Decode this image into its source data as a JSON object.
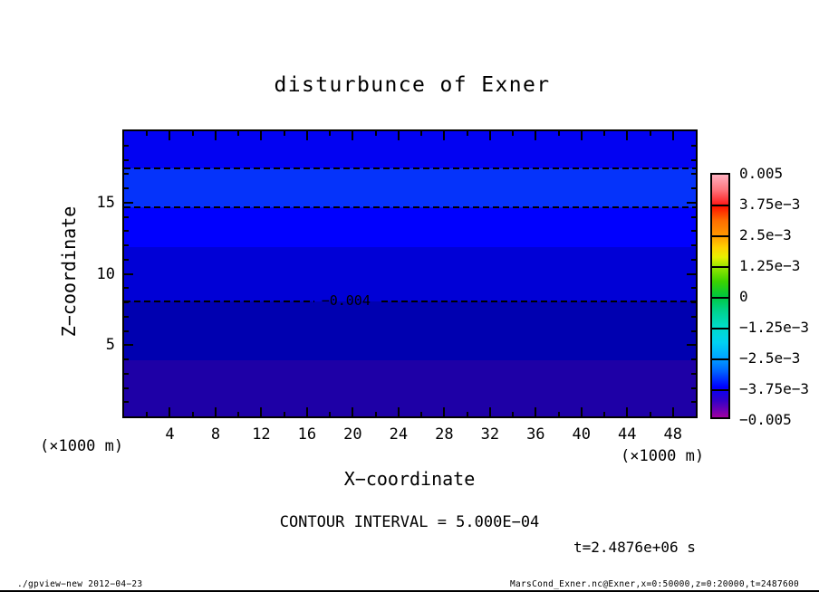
{
  "chart_data": {
    "type": "filled_contour",
    "title": "disturbunce of Exner",
    "xlabel": "X−coordinate",
    "ylabel": "Z−coordinate",
    "x_unit_left": "(×1000 m)",
    "x_unit_right": "(×1000 m)",
    "xlim": [
      0,
      50
    ],
    "ylim": [
      0,
      20
    ],
    "x_major_ticks": [
      4,
      8,
      12,
      16,
      20,
      24,
      28,
      32,
      36,
      40,
      44,
      48
    ],
    "x_minor_step": 2,
    "y_major_ticks": [
      5,
      10,
      15
    ],
    "y_minor_step": 1,
    "grid": false,
    "contour_interval_text": "CONTOUR INTERVAL = 5.000E−04",
    "time_label": "t=2.4876e+06 s",
    "bands": [
      {
        "z_from": 17.4,
        "z_to": 20.0,
        "color": "#0202f2",
        "value_range": "≈0.0030 to −0.0035"
      },
      {
        "z_from": 14.67,
        "z_to": 17.4,
        "color": "#0533fa",
        "value_range": "≈−0.0025 to −0.0030"
      },
      {
        "z_from": 11.87,
        "z_to": 14.67,
        "color": "#0000fe",
        "value_range": "≈−0.0030 to −0.0035"
      },
      {
        "z_from": 8.06,
        "z_to": 11.87,
        "color": "#0000d6",
        "value_range": "≈−0.0035 to −0.0040"
      },
      {
        "z_from": 3.94,
        "z_to": 8.06,
        "color": "#0000b0",
        "value_range": "≈−0.0040 to −0.0045"
      },
      {
        "z_from": 0.0,
        "z_to": 3.94,
        "color": "#1e00a6",
        "value_range": "≈−0.0045 to −0.0050"
      }
    ],
    "contour_lines": [
      {
        "z": 17.4,
        "style": "dashed",
        "label": null
      },
      {
        "z": 14.67,
        "style": "dashed",
        "label": null
      },
      {
        "z": 8.06,
        "style": "dashed",
        "label": "−0.004",
        "label_x_frac": 0.345
      }
    ],
    "colorbar": {
      "tick_labels": [
        "0.005",
        "3.75e−3",
        "2.5e−3",
        "1.25e−3",
        "0",
        "−1.25e−3",
        "−2.5e−3",
        "−3.75e−3",
        "−0.005"
      ],
      "gradient_stops": [
        {
          "at": 0.0,
          "color": "#ffb0c0"
        },
        {
          "at": 0.06,
          "color": "#ff7880"
        },
        {
          "at": 0.12,
          "color": "#ff2020"
        },
        {
          "at": 0.125,
          "color": "#ff0a00"
        },
        {
          "at": 0.19,
          "color": "#ff6e00"
        },
        {
          "at": 0.25,
          "color": "#ff9800"
        },
        {
          "at": 0.3,
          "color": "#ffd200"
        },
        {
          "at": 0.34,
          "color": "#e8f000"
        },
        {
          "at": 0.375,
          "color": "#a0e800"
        },
        {
          "at": 0.44,
          "color": "#3cd200"
        },
        {
          "at": 0.5,
          "color": "#00c83c"
        },
        {
          "at": 0.56,
          "color": "#00d28c"
        },
        {
          "at": 0.625,
          "color": "#00dcc8"
        },
        {
          "at": 0.69,
          "color": "#00d2f0"
        },
        {
          "at": 0.75,
          "color": "#00a8ff"
        },
        {
          "at": 0.81,
          "color": "#0064ff"
        },
        {
          "at": 0.875,
          "color": "#0000ff"
        },
        {
          "at": 0.93,
          "color": "#3200c8"
        },
        {
          "at": 0.97,
          "color": "#6e00b4"
        },
        {
          "at": 1.0,
          "color": "#a000a0"
        }
      ]
    }
  },
  "footer": {
    "left": "./gpview−new  2012−04−23",
    "right": "MarsCond_Exner.nc@Exner,x=0:50000,z=0:20000,t=2487600"
  }
}
